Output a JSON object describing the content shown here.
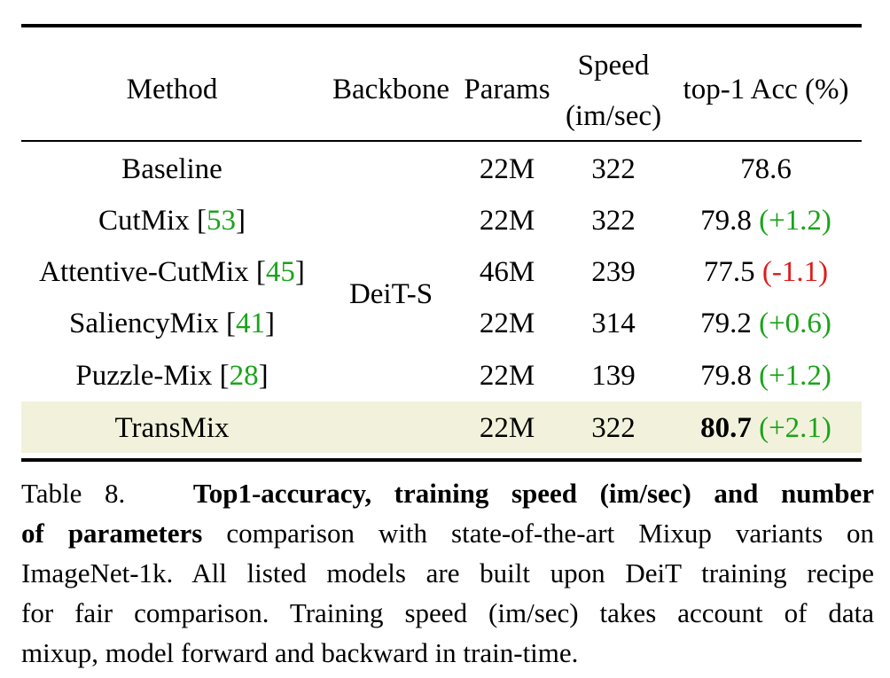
{
  "table": {
    "headers": {
      "method": "Method",
      "backbone": "Backbone",
      "params": "Params",
      "speed_line1": "Speed",
      "speed_line2": "(im/sec)",
      "acc": "top-1 Acc (%)"
    },
    "backbone_shared": "DeiT-S",
    "rows": [
      {
        "method": "Baseline",
        "ref": "",
        "params": "22M",
        "speed": "322",
        "acc": "78.6",
        "delta": "",
        "delta_color": ""
      },
      {
        "method": "CutMix",
        "ref": "53",
        "params": "22M",
        "speed": "322",
        "acc": "79.8",
        "delta": "(+1.2)",
        "delta_color": "#1aa31a"
      },
      {
        "method": "Attentive-CutMix",
        "ref": "45",
        "params": "46M",
        "speed": "239",
        "acc": "77.5",
        "delta": "(-1.1)",
        "delta_color": "#e01b1b"
      },
      {
        "method": "SaliencyMix",
        "ref": "41",
        "params": "22M",
        "speed": "314",
        "acc": "79.2",
        "delta": "(+0.6)",
        "delta_color": "#1aa31a"
      },
      {
        "method": "Puzzle-Mix",
        "ref": "28",
        "params": "22M",
        "speed": "139",
        "acc": "79.8",
        "delta": "(+1.2)",
        "delta_color": "#1aa31a"
      },
      {
        "method": "TransMix",
        "ref": "",
        "params": "22M",
        "speed": "322",
        "acc": "80.7",
        "delta": "(+2.1)",
        "delta_color": "#1aa31a"
      }
    ],
    "highlight_row_color": "#f2f2dc",
    "ref_color": "#1aa31a"
  },
  "caption": {
    "label": "Table 8.",
    "bold_part1": "Top1-accuracy, training speed (im/sec) and number",
    "bold_part2": "of parameters",
    "line2_rest": "comparison with state-of-the-art Mixup variants on",
    "line3": "ImageNet-1k. All listed models are built upon DeiT training recipe",
    "line4": "for fair comparison. Training speed (im/sec) takes account of data",
    "line5": "mixup, model forward and backward in train-time."
  }
}
